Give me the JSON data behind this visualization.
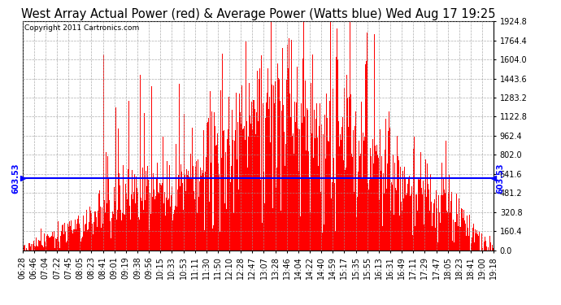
{
  "title": "West Array Actual Power (red) & Average Power (Watts blue) Wed Aug 17 19:25",
  "copyright": "Copyright 2011 Cartronics.com",
  "ymin": 0.0,
  "ymax": 1924.8,
  "ytick_step": 160.4,
  "average_line": 603.53,
  "avg_label": "603.53",
  "background_color": "#ffffff",
  "plot_bg_color": "#ffffff",
  "grid_color": "#999999",
  "fill_color": "#ff0000",
  "line_color": "#0000ff",
  "x_labels": [
    "06:28",
    "06:46",
    "07:04",
    "07:22",
    "07:45",
    "08:05",
    "08:23",
    "08:41",
    "09:01",
    "09:19",
    "09:38",
    "09:56",
    "10:15",
    "10:33",
    "10:53",
    "11:11",
    "11:30",
    "11:50",
    "12:10",
    "12:28",
    "12:47",
    "13:07",
    "13:28",
    "13:46",
    "14:04",
    "14:22",
    "14:40",
    "14:59",
    "15:17",
    "15:35",
    "15:55",
    "16:13",
    "16:31",
    "16:49",
    "17:11",
    "17:29",
    "17:47",
    "18:05",
    "18:23",
    "18:41",
    "19:00",
    "19:18"
  ],
  "title_fontsize": 10.5,
  "tick_fontsize": 7,
  "copyright_fontsize": 6.5
}
